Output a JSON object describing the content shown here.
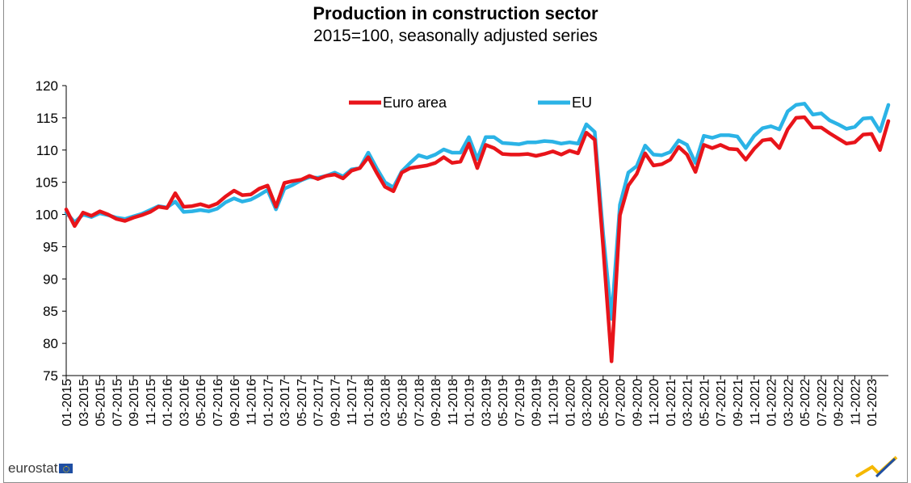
{
  "chart_data": {
    "type": "line",
    "title": "Production in construction sector",
    "subtitle": "2015=100, seasonally adjusted series",
    "ylim": [
      75,
      120
    ],
    "yticks": [
      75,
      80,
      85,
      90,
      95,
      100,
      105,
      110,
      115,
      120
    ],
    "xticks": [
      "01-2015",
      "03-2015",
      "05-2015",
      "07-2015",
      "09-2015",
      "11-2015",
      "01-2016",
      "03-2016",
      "05-2016",
      "07-2016",
      "09-2016",
      "11-2016",
      "01-2017",
      "03-2017",
      "05-2017",
      "07-2017",
      "09-2017",
      "11-2017",
      "01-2018",
      "03-2018",
      "05-2018",
      "07-2018",
      "09-2018",
      "11-2018",
      "01-2019",
      "03-2019",
      "05-2019",
      "07-2019",
      "09-2019",
      "11-2019",
      "01-2020",
      "03-2020",
      "05-2020",
      "07-2020",
      "09-2020",
      "11-2020",
      "01-2021",
      "03-2021",
      "05-2021",
      "07-2021",
      "09-2021",
      "11-2021",
      "01-2022",
      "03-2022",
      "05-2022",
      "07-2022",
      "09-2022",
      "11-2022",
      "01-2023"
    ],
    "legend": "top-center",
    "grid": false,
    "series": [
      {
        "name": "Euro area",
        "color": "#e8141a",
        "values": [
          100.8,
          98.2,
          100.3,
          99.8,
          100.5,
          100.0,
          99.3,
          99.0,
          99.5,
          99.9,
          100.4,
          101.2,
          101.0,
          103.3,
          101.2,
          101.3,
          101.6,
          101.2,
          101.7,
          102.8,
          103.7,
          103.0,
          103.1,
          104.0,
          104.5,
          101.2,
          104.9,
          105.2,
          105.4,
          106.0,
          105.5,
          106.0,
          106.2,
          105.6,
          106.8,
          107.2,
          108.9,
          106.5,
          104.3,
          103.6,
          106.5,
          107.2,
          107.4,
          107.6,
          108.0,
          108.9,
          108.0,
          108.2,
          111.0,
          107.2,
          110.8,
          110.3,
          109.4,
          109.3,
          109.3,
          109.4,
          109.1,
          109.4,
          109.8,
          109.3,
          109.9,
          109.5,
          112.7,
          111.6,
          95.0,
          77.2,
          99.9,
          104.5,
          106.3,
          109.5,
          107.6,
          107.8,
          108.5,
          110.5,
          109.3,
          106.6,
          110.8,
          110.3,
          110.8,
          110.2,
          110.1,
          108.5,
          110.2,
          111.5,
          111.7,
          110.3,
          113.2,
          115.0,
          115.1,
          113.5,
          113.5,
          112.6,
          111.8,
          111.0,
          111.2,
          112.4,
          112.5,
          110.0,
          114.5
        ]
      },
      {
        "name": "EU",
        "color": "#2bb3e6",
        "values": [
          100.3,
          98.8,
          100.0,
          99.6,
          100.2,
          99.9,
          99.5,
          99.3,
          99.7,
          100.1,
          100.7,
          101.3,
          101.1,
          102.0,
          100.4,
          100.5,
          100.7,
          100.5,
          100.9,
          101.9,
          102.5,
          102.0,
          102.3,
          103.0,
          103.8,
          100.8,
          104.0,
          104.6,
          105.3,
          105.8,
          105.7,
          106.0,
          106.5,
          105.9,
          107.0,
          107.2,
          109.6,
          107.2,
          105.0,
          104.2,
          106.7,
          108.0,
          109.2,
          108.8,
          109.3,
          110.1,
          109.6,
          109.6,
          112.0,
          108.6,
          112.0,
          112.0,
          111.1,
          111.0,
          110.9,
          111.2,
          111.2,
          111.4,
          111.3,
          111.0,
          111.2,
          111.0,
          114.0,
          112.8,
          97.0,
          83.8,
          101.5,
          106.5,
          107.5,
          110.7,
          109.3,
          109.2,
          109.7,
          111.5,
          110.8,
          108.0,
          112.2,
          111.9,
          112.3,
          112.3,
          112.1,
          110.3,
          112.2,
          113.4,
          113.7,
          113.2,
          116.0,
          117.0,
          117.2,
          115.5,
          115.7,
          114.6,
          114.0,
          113.3,
          113.6,
          114.9,
          115.0,
          112.9,
          117.0
        ]
      }
    ]
  },
  "logo": {
    "text": "eurostat"
  }
}
